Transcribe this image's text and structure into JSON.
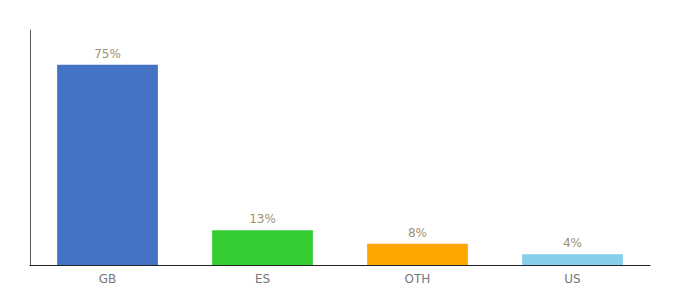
{
  "chart_data": {
    "type": "bar",
    "categories": [
      "GB",
      "ES",
      "OTH",
      "US"
    ],
    "values": [
      75,
      13,
      8,
      4
    ],
    "value_labels": [
      "75%",
      "13%",
      "8%",
      "4%"
    ],
    "colors": [
      "#4472C4",
      "#33CC33",
      "#FFA500",
      "#87CEEB"
    ],
    "ylim": [
      0,
      88
    ],
    "data_labels": true,
    "tick_labels": "x",
    "grid": false
  }
}
